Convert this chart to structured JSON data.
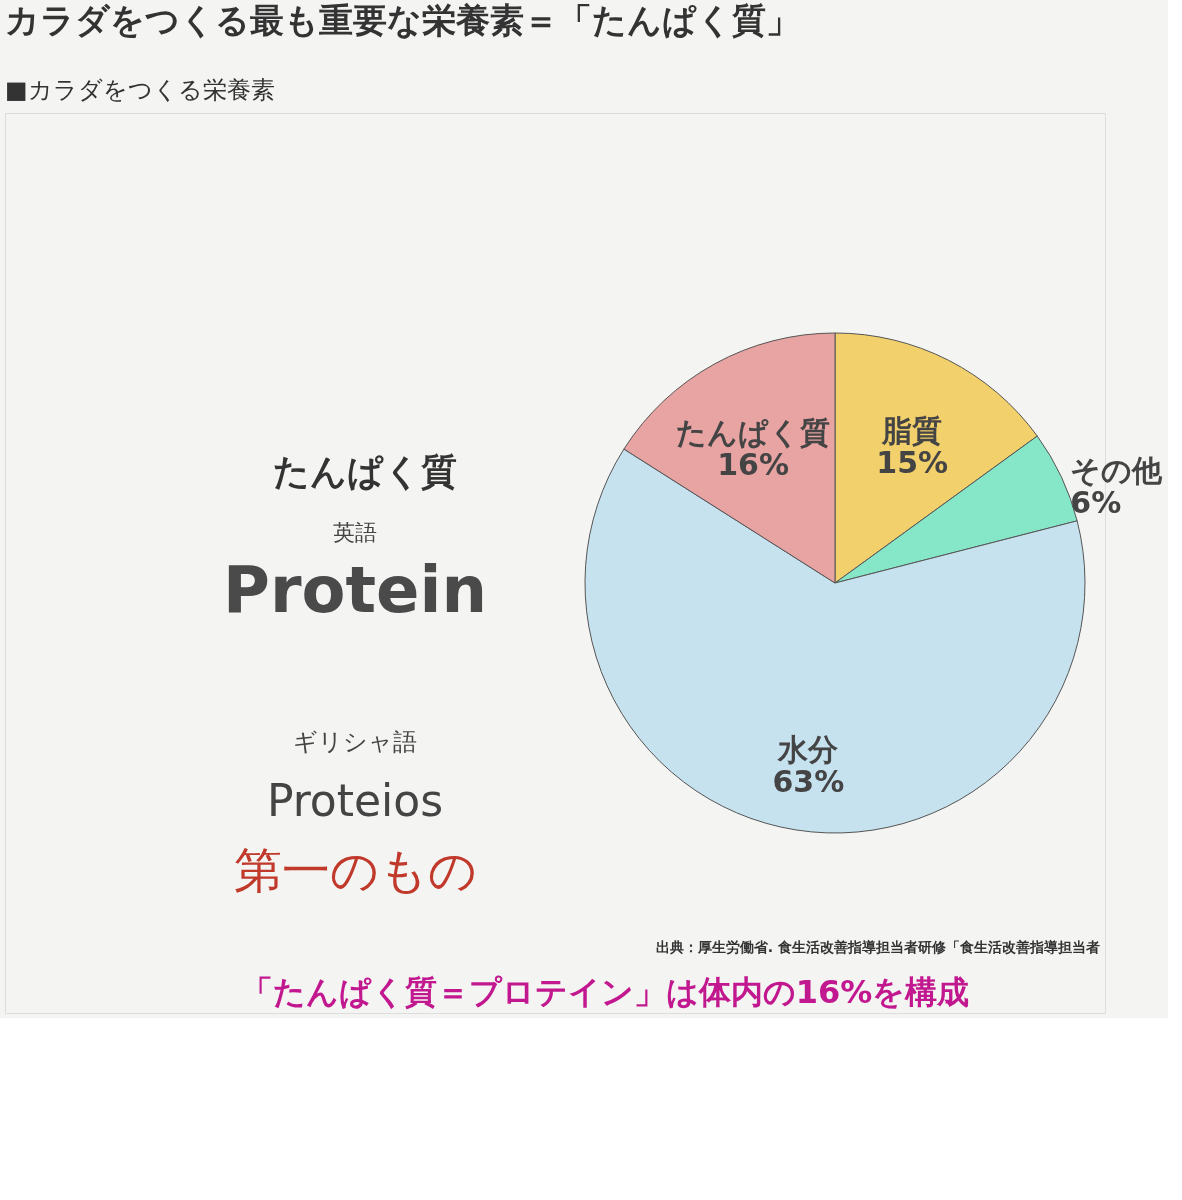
{
  "chart_data": {
    "type": "pie",
    "title": "カラダをつくる最も重要な栄養素＝「たんぱく質」",
    "subtitle": "■カラダをつくる栄養素",
    "categories": [
      "脂質",
      "その他",
      "水分",
      "たんぱく質"
    ],
    "values": [
      15,
      6,
      63,
      16
    ],
    "value_labels": [
      "15%",
      "6%",
      "63%",
      "16%"
    ],
    "colors": [
      "#f2d06b",
      "#86e6c8",
      "#c6e2ef",
      "#e8a3a3"
    ],
    "annotations": [
      "たんぱく質",
      "英語",
      "Protein",
      "ギリシャ語",
      "Proteios",
      "第一のもの",
      "出典：厚生労働省. 食生活改善指導担当者研修「食生活改善指導担当者",
      "「たんぱく質＝プロテイン」は体内の16%を構成"
    ]
  }
}
